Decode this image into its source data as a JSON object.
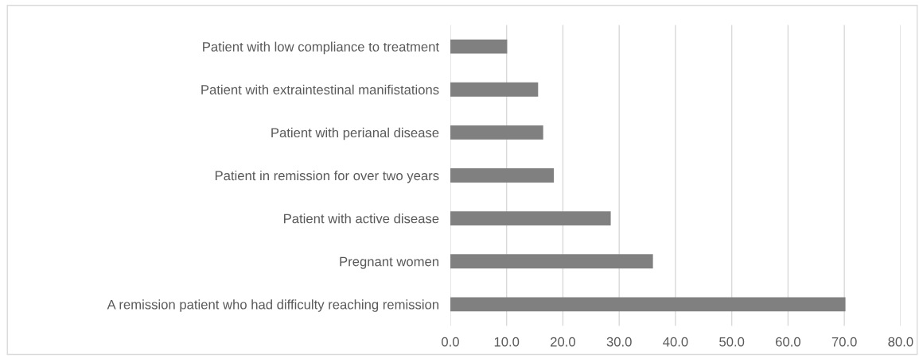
{
  "chart_data": {
    "type": "bar",
    "orientation": "horizontal",
    "categories": [
      "Patient with low compliance to treatment",
      "Patient with extraintestinal manifistations",
      "Patient with perianal disease",
      "Patient in remission for over two years",
      "Patient with active disease",
      "Pregnant women",
      "A remission patient who had difficulty reaching remission"
    ],
    "values": [
      10.1,
      15.6,
      16.5,
      18.4,
      28.5,
      36.0,
      70.2
    ],
    "color": "#808080",
    "xlim": [
      0,
      80
    ],
    "xticks": [
      {
        "value": 0,
        "label": "0.0"
      },
      {
        "value": 10,
        "label": "10.0"
      },
      {
        "value": 20,
        "label": "20.0"
      },
      {
        "value": 30,
        "label": "30.0"
      },
      {
        "value": 40,
        "label": "40.0"
      },
      {
        "value": 50,
        "label": "50.0"
      },
      {
        "value": 60,
        "label": "60.0"
      },
      {
        "value": 70,
        "label": "70.0"
      },
      {
        "value": 80,
        "label": "80.0"
      }
    ],
    "grid": "x",
    "legend": false
  }
}
